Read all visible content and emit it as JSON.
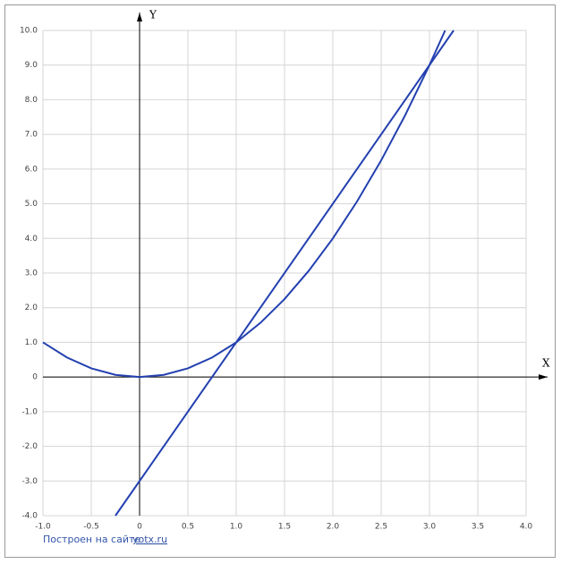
{
  "chart_data": {
    "type": "line",
    "x_label": "X",
    "y_label": "Y",
    "xlim": [
      -1,
      4
    ],
    "ylim": [
      -4,
      10
    ],
    "xticks": [
      {
        "value": -1,
        "label": "-1.0"
      },
      -0.5,
      0,
      0.5,
      {
        "value": 1,
        "label": "1.0"
      },
      1.5,
      {
        "value": 2,
        "label": "2.0"
      },
      2.5,
      {
        "value": 3,
        "label": "3.0"
      },
      3.5,
      {
        "value": 4,
        "label": "4.0"
      }
    ],
    "yticks": [
      {
        "value": -4,
        "label": "-4.0"
      },
      {
        "value": -3,
        "label": "-3.0"
      },
      {
        "value": -2,
        "label": "-2.0"
      },
      {
        "value": -1,
        "label": "-1.0"
      },
      0,
      {
        "value": 1,
        "label": "1.0"
      },
      {
        "value": 2,
        "label": "2.0"
      },
      {
        "value": 3,
        "label": "3.0"
      },
      {
        "value": 4,
        "label": "4.0"
      },
      {
        "value": 5,
        "label": "5.0"
      },
      {
        "value": 6,
        "label": "6.0"
      },
      {
        "value": 7,
        "label": "7.0"
      },
      {
        "value": 8,
        "label": "8.0"
      },
      {
        "value": 9,
        "label": "9.0"
      },
      {
        "value": 10,
        "label": "10.0"
      }
    ],
    "grid": true,
    "series": [
      {
        "color": "#2340b0",
        "x": [
          -1,
          -0.75,
          -0.5,
          -0.25,
          0,
          0.25,
          0.5,
          0.75,
          1,
          1.25,
          1.5,
          1.75,
          2,
          2.25,
          2.5,
          2.75,
          3,
          3.162
        ],
        "values": [
          1,
          0.5625,
          0.25,
          0.0625,
          0,
          0.0625,
          0.25,
          0.5625,
          1,
          1.5625,
          2.25,
          3.0625,
          4,
          5.0625,
          6.25,
          7.5625,
          9,
          10
        ]
      },
      {
        "color": "#2340b0",
        "x": [
          -0.25,
          3.25
        ],
        "values": [
          -4,
          10
        ]
      }
    ],
    "credit_text": "Построен на сайте",
    "credit_link": "yotx.ru"
  }
}
